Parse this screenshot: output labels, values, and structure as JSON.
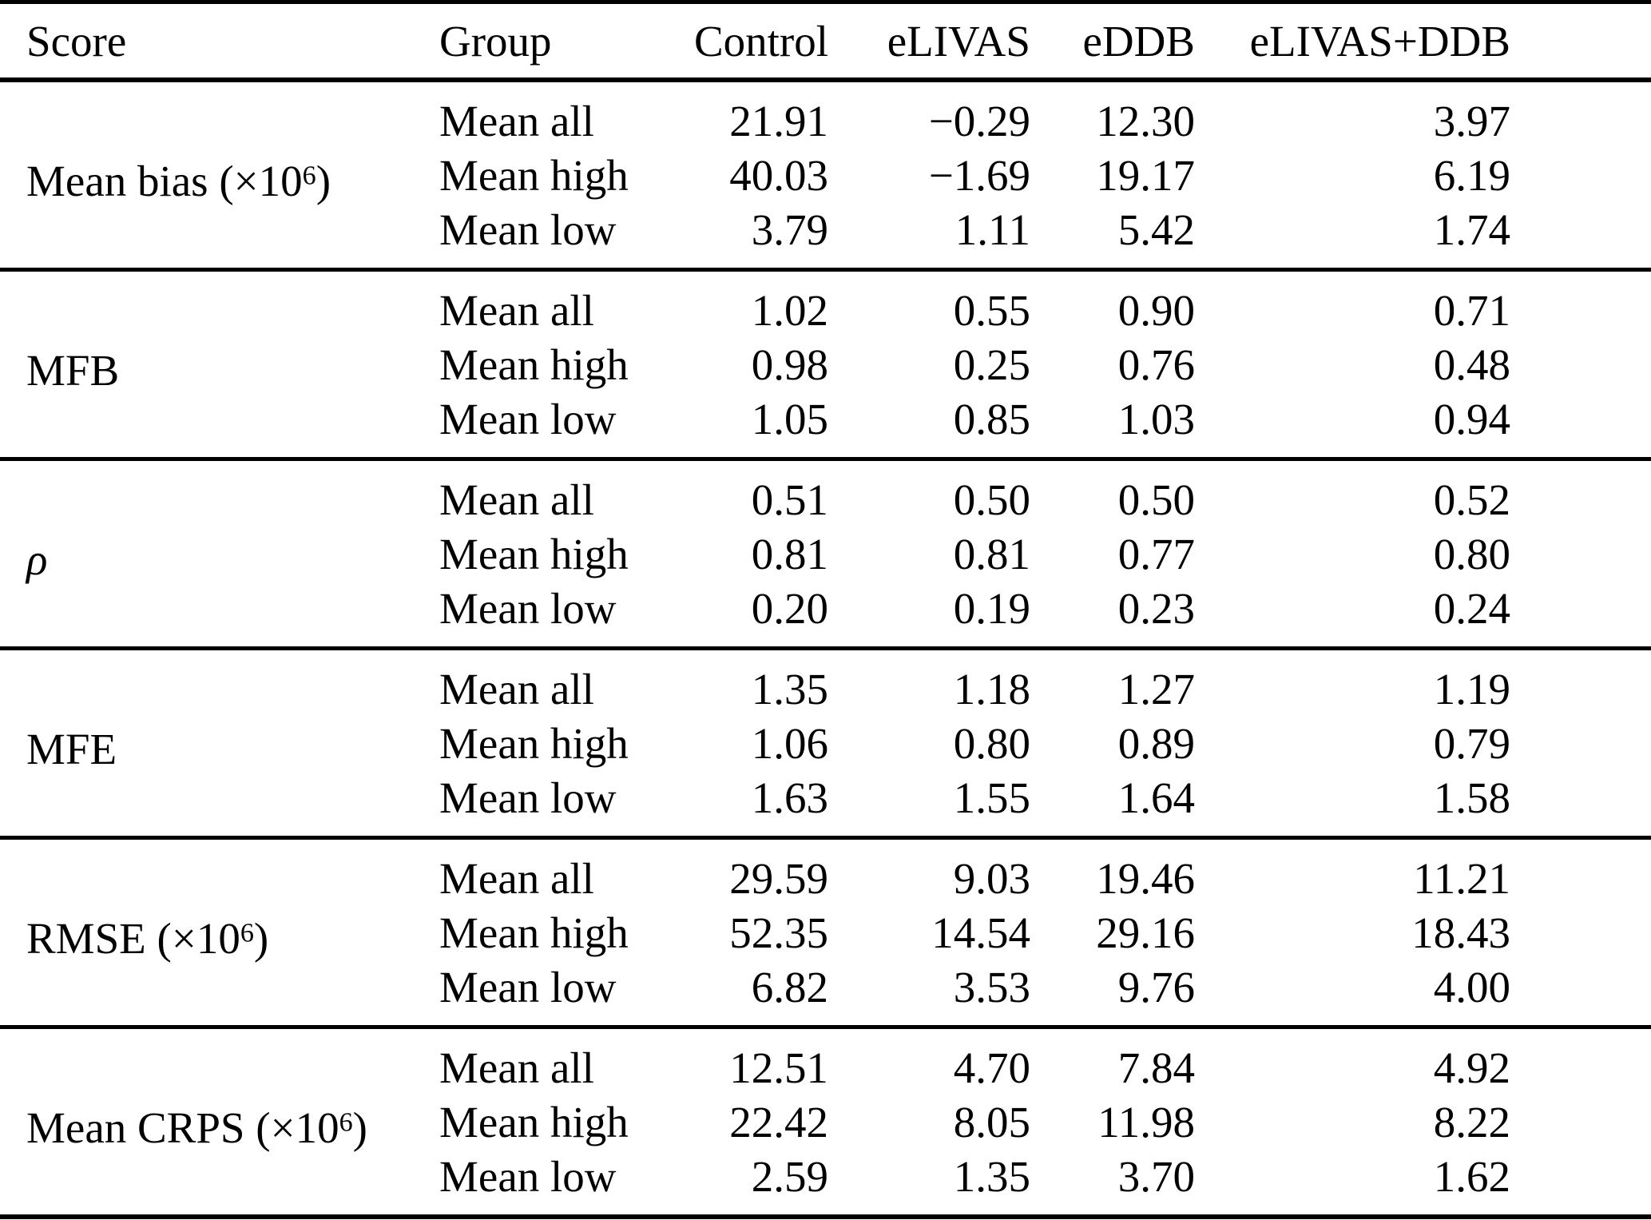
{
  "table": {
    "columns": [
      "Score",
      "Group",
      "Control",
      "eLIVAS",
      "eDDB",
      "eLIVAS+DDB"
    ],
    "sections": [
      {
        "score": {
          "prefix": "Mean bias (×10",
          "sup": "6",
          "suffix": ")",
          "italic": false
        },
        "rows": [
          {
            "group": "Mean all",
            "values": [
              "21.91",
              "−0.29",
              "12.30",
              "3.97"
            ]
          },
          {
            "group": "Mean high",
            "values": [
              "40.03",
              "−1.69",
              "19.17",
              "6.19"
            ]
          },
          {
            "group": "Mean low",
            "values": [
              "3.79",
              "1.11",
              "5.42",
              "1.74"
            ]
          }
        ]
      },
      {
        "score": {
          "prefix": "MFB",
          "sup": "",
          "suffix": "",
          "italic": false
        },
        "rows": [
          {
            "group": "Mean all",
            "values": [
              "1.02",
              "0.55",
              "0.90",
              "0.71"
            ]
          },
          {
            "group": "Mean high",
            "values": [
              "0.98",
              "0.25",
              "0.76",
              "0.48"
            ]
          },
          {
            "group": "Mean low",
            "values": [
              "1.05",
              "0.85",
              "1.03",
              "0.94"
            ]
          }
        ]
      },
      {
        "score": {
          "prefix": "ρ",
          "sup": "",
          "suffix": "",
          "italic": true
        },
        "rows": [
          {
            "group": "Mean all",
            "values": [
              "0.51",
              "0.50",
              "0.50",
              "0.52"
            ]
          },
          {
            "group": "Mean high",
            "values": [
              "0.81",
              "0.81",
              "0.77",
              "0.80"
            ]
          },
          {
            "group": "Mean low",
            "values": [
              "0.20",
              "0.19",
              "0.23",
              "0.24"
            ]
          }
        ]
      },
      {
        "score": {
          "prefix": "MFE",
          "sup": "",
          "suffix": "",
          "italic": false
        },
        "rows": [
          {
            "group": "Mean all",
            "values": [
              "1.35",
              "1.18",
              "1.27",
              "1.19"
            ]
          },
          {
            "group": "Mean high",
            "values": [
              "1.06",
              "0.80",
              "0.89",
              "0.79"
            ]
          },
          {
            "group": "Mean low",
            "values": [
              "1.63",
              "1.55",
              "1.64",
              "1.58"
            ]
          }
        ]
      },
      {
        "score": {
          "prefix": "RMSE (×10",
          "sup": "6",
          "suffix": ")",
          "italic": false
        },
        "rows": [
          {
            "group": "Mean all",
            "values": [
              "29.59",
              "9.03",
              "19.46",
              "11.21"
            ]
          },
          {
            "group": "Mean high",
            "values": [
              "52.35",
              "14.54",
              "29.16",
              "18.43"
            ]
          },
          {
            "group": "Mean low",
            "values": [
              "6.82",
              "3.53",
              "9.76",
              "4.00"
            ]
          }
        ]
      },
      {
        "score": {
          "prefix": "Mean CRPS (×10",
          "sup": "6",
          "suffix": ")",
          "italic": false
        },
        "rows": [
          {
            "group": "Mean all",
            "values": [
              "12.51",
              "4.70",
              "7.84",
              "4.92"
            ]
          },
          {
            "group": "Mean high",
            "values": [
              "22.42",
              "8.05",
              "11.98",
              "8.22"
            ]
          },
          {
            "group": "Mean low",
            "values": [
              "2.59",
              "1.35",
              "3.70",
              "1.62"
            ]
          }
        ]
      }
    ]
  }
}
